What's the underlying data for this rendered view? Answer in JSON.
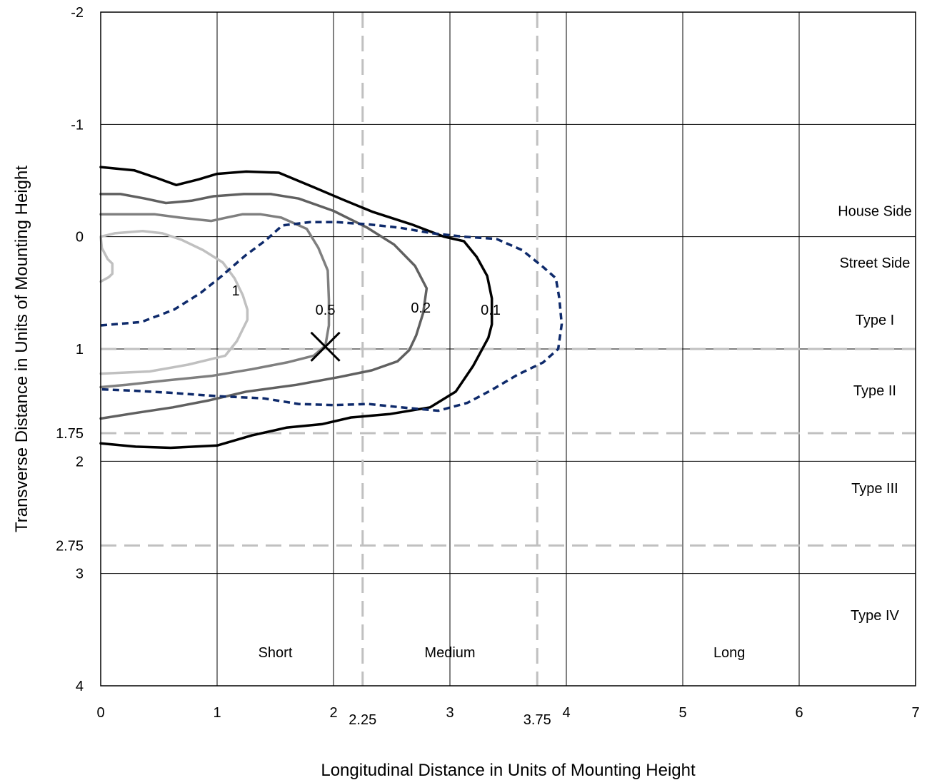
{
  "chart_data": {
    "type": "line",
    "title": "",
    "xlabel": "Longitudinal Distance in Units of Mounting Height",
    "ylabel": "Transverse Distance in Units of Mounting Height",
    "xlim": [
      0,
      7
    ],
    "ylim": [
      -2,
      4
    ],
    "y_axis_inverted": true,
    "grid": true,
    "x_ticks": [
      "0",
      "1",
      "2",
      "3",
      "4",
      "5",
      "6",
      "7"
    ],
    "y_ticks": [
      "-2",
      "-1",
      "0",
      "1",
      "2",
      "3",
      "4"
    ],
    "x_extra_ticks": [
      {
        "value": 2.25,
        "label": "2.25"
      },
      {
        "value": 3.75,
        "label": "3.75"
      }
    ],
    "y_extra_ticks": [
      {
        "value": 1.75,
        "label": "1.75"
      },
      {
        "value": 2.75,
        "label": "2.75"
      }
    ],
    "reference_lines": {
      "vertical_dashed": [
        2.25,
        3.75
      ],
      "horizontal_dashed": [
        1,
        1.75,
        2.75
      ],
      "color": "#c0c0c0"
    },
    "region_labels": [
      {
        "text": "House Side",
        "x": 6.65,
        "y": -0.23
      },
      {
        "text": "Street Side",
        "x": 6.65,
        "y": 0.23
      },
      {
        "text": "Type I",
        "x": 6.65,
        "y": 0.74
      },
      {
        "text": "Type II",
        "x": 6.65,
        "y": 1.37
      },
      {
        "text": "Type III",
        "x": 6.65,
        "y": 2.24
      },
      {
        "text": "Type IV",
        "x": 6.65,
        "y": 3.37
      },
      {
        "text": "Short",
        "x": 1.5,
        "y": 3.7
      },
      {
        "text": "Medium",
        "x": 3.0,
        "y": 3.7
      },
      {
        "text": "Long",
        "x": 5.4,
        "y": 3.7
      }
    ],
    "contour_labels": [
      {
        "text": "1",
        "x": 1.16,
        "y": 0.48
      },
      {
        "text": "0.5",
        "x": 1.93,
        "y": 0.65
      },
      {
        "text": "0.2",
        "x": 2.75,
        "y": 0.63
      },
      {
        "text": "0.1",
        "x": 3.35,
        "y": 0.65
      }
    ],
    "marker": {
      "symbol": "x",
      "x": 1.93,
      "y": 0.98
    },
    "series": [
      {
        "color": "#c0c0c0",
        "style": "solid",
        "points": [
          [
            0,
            0.4
          ],
          [
            0.07,
            0.36
          ],
          [
            0.1,
            0.33
          ],
          [
            0.1,
            0.24
          ],
          [
            0.06,
            0.2
          ],
          [
            0.01,
            0.1
          ],
          [
            0,
            0
          ],
          [
            0.12,
            -0.03
          ],
          [
            0.36,
            -0.05
          ],
          [
            0.53,
            -0.03
          ],
          [
            0.7,
            0.03
          ],
          [
            0.88,
            0.12
          ],
          [
            1.05,
            0.23
          ],
          [
            1.15,
            0.37
          ],
          [
            1.22,
            0.52
          ],
          [
            1.26,
            0.65
          ],
          [
            1.26,
            0.74
          ],
          [
            1.17,
            0.93
          ],
          [
            1.07,
            1.06
          ],
          [
            0.75,
            1.14
          ],
          [
            0.42,
            1.2
          ],
          [
            0,
            1.22
          ]
        ]
      },
      {
        "color": "#7f7f7f",
        "style": "solid",
        "points": [
          [
            0,
            -0.2
          ],
          [
            0.46,
            -0.2
          ],
          [
            0.68,
            -0.17
          ],
          [
            0.95,
            -0.14
          ],
          [
            1.08,
            -0.17
          ],
          [
            1.22,
            -0.2
          ],
          [
            1.37,
            -0.2
          ],
          [
            1.55,
            -0.17
          ],
          [
            1.77,
            -0.07
          ],
          [
            1.87,
            0.1
          ],
          [
            1.95,
            0.3
          ],
          [
            1.96,
            0.56
          ],
          [
            1.96,
            0.79
          ],
          [
            1.93,
            0.97
          ],
          [
            1.83,
            1.06
          ],
          [
            1.6,
            1.12
          ],
          [
            1.3,
            1.18
          ],
          [
            0.95,
            1.24
          ],
          [
            0.56,
            1.28
          ],
          [
            0.22,
            1.32
          ],
          [
            0,
            1.34
          ]
        ]
      },
      {
        "color": "#606060",
        "style": "solid",
        "points": [
          [
            0,
            -0.38
          ],
          [
            0.17,
            -0.38
          ],
          [
            0.38,
            -0.34
          ],
          [
            0.56,
            -0.3
          ],
          [
            0.78,
            -0.32
          ],
          [
            0.97,
            -0.36
          ],
          [
            1.23,
            -0.38
          ],
          [
            1.46,
            -0.38
          ],
          [
            1.7,
            -0.34
          ],
          [
            2.0,
            -0.23
          ],
          [
            2.29,
            -0.08
          ],
          [
            2.52,
            0.07
          ],
          [
            2.7,
            0.26
          ],
          [
            2.8,
            0.46
          ],
          [
            2.77,
            0.68
          ],
          [
            2.71,
            0.88
          ],
          [
            2.65,
            1.01
          ],
          [
            2.55,
            1.11
          ],
          [
            2.33,
            1.19
          ],
          [
            2.05,
            1.25
          ],
          [
            1.68,
            1.32
          ],
          [
            1.25,
            1.38
          ],
          [
            0.92,
            1.46
          ],
          [
            0.62,
            1.52
          ],
          [
            0.3,
            1.57
          ],
          [
            0,
            1.62
          ]
        ]
      },
      {
        "color": "#000000",
        "style": "solid",
        "points": [
          [
            0,
            -0.62
          ],
          [
            0.29,
            -0.59
          ],
          [
            0.49,
            -0.52
          ],
          [
            0.65,
            -0.46
          ],
          [
            0.84,
            -0.51
          ],
          [
            1.0,
            -0.56
          ],
          [
            1.25,
            -0.58
          ],
          [
            1.53,
            -0.57
          ],
          [
            1.83,
            -0.44
          ],
          [
            2.08,
            -0.33
          ],
          [
            2.34,
            -0.22
          ],
          [
            2.67,
            -0.11
          ],
          [
            2.95,
            0.0
          ],
          [
            3.12,
            0.04
          ],
          [
            3.23,
            0.18
          ],
          [
            3.32,
            0.35
          ],
          [
            3.36,
            0.55
          ],
          [
            3.36,
            0.78
          ],
          [
            3.33,
            0.9
          ],
          [
            3.2,
            1.15
          ],
          [
            3.05,
            1.38
          ],
          [
            2.83,
            1.52
          ],
          [
            2.48,
            1.58
          ],
          [
            2.15,
            1.61
          ],
          [
            1.9,
            1.67
          ],
          [
            1.6,
            1.7
          ],
          [
            1.3,
            1.77
          ],
          [
            1.0,
            1.86
          ],
          [
            0.6,
            1.88
          ],
          [
            0.3,
            1.87
          ],
          [
            0,
            1.84
          ]
        ]
      },
      {
        "color": "#0e2a6b",
        "style": "dashed",
        "points": [
          [
            0,
            0.79
          ],
          [
            0.35,
            0.76
          ],
          [
            0.63,
            0.65
          ],
          [
            0.86,
            0.5
          ],
          [
            1.04,
            0.35
          ],
          [
            1.24,
            0.17
          ],
          [
            1.42,
            0.03
          ],
          [
            1.56,
            -0.1
          ],
          [
            1.8,
            -0.13
          ],
          [
            2.02,
            -0.13
          ],
          [
            2.3,
            -0.11
          ],
          [
            2.57,
            -0.08
          ],
          [
            2.85,
            -0.03
          ],
          [
            3.12,
            0.0
          ],
          [
            3.4,
            0.02
          ],
          [
            3.62,
            0.12
          ],
          [
            3.8,
            0.27
          ],
          [
            3.91,
            0.37
          ],
          [
            3.94,
            0.55
          ],
          [
            3.96,
            0.78
          ],
          [
            3.93,
            1.0
          ],
          [
            3.8,
            1.12
          ],
          [
            3.58,
            1.23
          ],
          [
            3.35,
            1.37
          ],
          [
            3.15,
            1.48
          ],
          [
            2.9,
            1.55
          ],
          [
            2.58,
            1.52
          ],
          [
            2.3,
            1.49
          ],
          [
            2.0,
            1.5
          ],
          [
            1.7,
            1.49
          ],
          [
            1.4,
            1.44
          ],
          [
            1.0,
            1.42
          ],
          [
            0.6,
            1.39
          ],
          [
            0.25,
            1.37
          ],
          [
            0,
            1.36
          ]
        ]
      }
    ]
  }
}
